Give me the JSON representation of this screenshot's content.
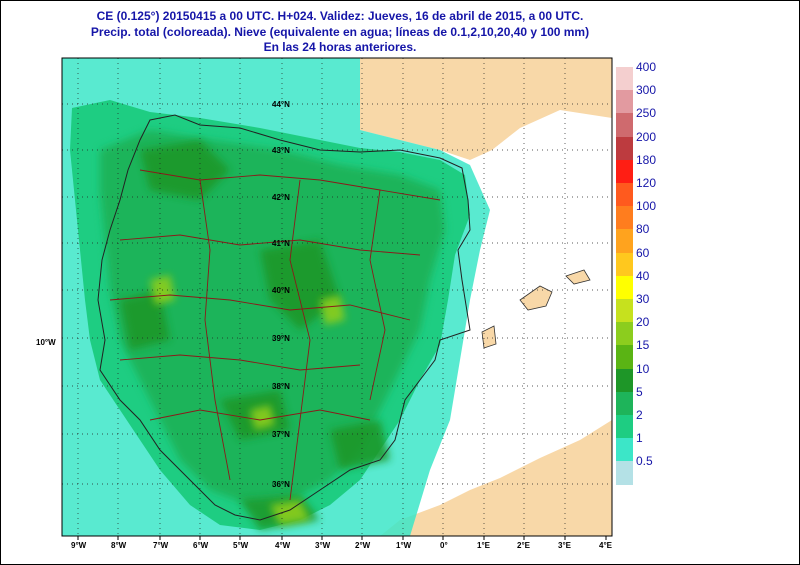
{
  "header": {
    "line1": "CE (0.125°) 20150415 a 00 UTC.  H+024. Validez: Jueves, 16 de abril de 2015,  a  00 UTC.",
    "line2": "Precip. total (coloreada). Nieve (equivalente en agua; líneas de 0.1,2,10,20,40 y 100 mm)",
    "line3": "En las 24 horas anteriores."
  },
  "axes": {
    "lon_ticks": [
      "9°W",
      "8°W",
      "7°W",
      "6°W",
      "5°W",
      "4°W",
      "3°W",
      "2°W",
      "1°W",
      "0°",
      "1°E",
      "2°E",
      "3°E",
      "4°E"
    ],
    "lat_labels": [
      "44°N",
      "43°N",
      "42°N",
      "41°N",
      "40°N",
      "39°N",
      "38°N",
      "37°N",
      "36°N"
    ],
    "side_label": "10°W"
  },
  "legend": {
    "levels": [
      "400",
      "300",
      "250",
      "200",
      "180",
      "120",
      "100",
      "80",
      "60",
      "40",
      "30",
      "20",
      "15",
      "10",
      "5",
      "2",
      "1",
      "0.5"
    ],
    "colors": [
      "#f4cfcf",
      "#e29aa0",
      "#cf6a6e",
      "#bd3b3f",
      "#ff1e14",
      "#ff5a1e",
      "#ff7d1e",
      "#ffa31e",
      "#ffc81e",
      "#ffff00",
      "#c6e11e",
      "#8ccd1e",
      "#5ab414",
      "#1e9628",
      "#1eb45a",
      "#1ecd82",
      "#3ce6c8",
      "#b4e1e6"
    ]
  },
  "colors": {
    "title": "#1515a8",
    "sea": "#ffffff",
    "land_dry": "#f8d8a8",
    "precip_low": "#2cc87c",
    "precip_mid": "#1eb45a",
    "precip_high": "#1e9628",
    "border": "#8b1a1a"
  }
}
